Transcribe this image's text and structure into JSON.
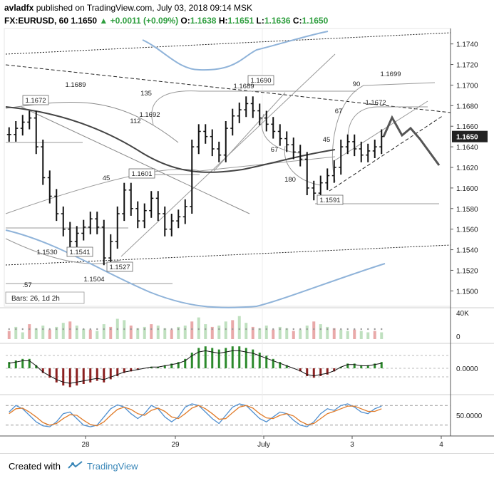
{
  "header": {
    "author": "avladfx",
    "published": "published on TradingView.com,",
    "datetime": "July 03, 2018 09:14 MSK",
    "symbol": "FX:EURUSD, 60",
    "last": "1.1650",
    "change": "+0.0011 (+0.09%)",
    "o_label": "O:",
    "o": "1.1638",
    "h_label": "H:",
    "h": "1.1651",
    "l_label": "L:",
    "l": "1.1636",
    "c_label": "C:",
    "c": "1.1650"
  },
  "footer": {
    "created_with": "Created with",
    "brand": "TradingView"
  },
  "chart_data": [
    {
      "type": "candlestick",
      "title": "FX:EURUSD, 60",
      "ylim": [
        1.1485,
        1.1755
      ],
      "y_ticks": [
        "1.1740",
        "1.1720",
        "1.1700",
        "1.1680",
        "1.1660",
        "1.1640",
        "1.1620",
        "1.1600",
        "1.1580",
        "1.1560",
        "1.1540",
        "1.1520",
        "1.1500"
      ],
      "x_ticks": [
        "28",
        "29",
        "July",
        "3",
        "4"
      ],
      "current_price": "1.1650",
      "price_labels": [
        "1.1672",
        "1.1689",
        "1.1692",
        "1.1690",
        "1.1689",
        "1.1699",
        "1.1672",
        "1.1601",
        "1.1591",
        "1.1541",
        "1.1527",
        "1.1530",
        "1.1504"
      ],
      "fib_labels": [
        "135",
        "112",
        "45",
        "90",
        "67",
        "45",
        "67",
        "180",
        ".57"
      ],
      "info_box": "Bars: 26, 1d 2h",
      "series": [
        {
          "name": "close",
          "values": [
            1.1652,
            1.1658,
            1.1664,
            1.1668,
            1.164,
            1.161,
            1.1592,
            1.1575,
            1.156,
            1.1548,
            1.1556,
            1.1562,
            1.157,
            1.1562,
            1.1532,
            1.1548,
            1.1575,
            1.1598,
            1.158,
            1.1568,
            1.1578,
            1.159,
            1.1575,
            1.156,
            1.1568,
            1.1572,
            1.1582,
            1.164,
            1.1655,
            1.165,
            1.1638,
            1.1632,
            1.1658,
            1.167,
            1.1676,
            1.1682,
            1.1675,
            1.1668,
            1.1662,
            1.1655,
            1.1648,
            1.1642,
            1.1635,
            1.1628,
            1.16,
            1.1595,
            1.1605,
            1.1612,
            1.162,
            1.164,
            1.1645,
            1.1638,
            1.1632,
            1.1636,
            1.164,
            1.165
          ]
        }
      ]
    },
    {
      "type": "bar",
      "title": "Volume",
      "y_ticks": [
        "40K",
        "0"
      ],
      "values": [
        12,
        18,
        10,
        22,
        16,
        20,
        14,
        18,
        24,
        26,
        20,
        15,
        14,
        12,
        22,
        18,
        30,
        28,
        20,
        16,
        18,
        22,
        20,
        16,
        14,
        18,
        20,
        26,
        32,
        22,
        18,
        20,
        26,
        28,
        34,
        24,
        18,
        16,
        20,
        14,
        18,
        16,
        12,
        14,
        20,
        26,
        22,
        18,
        16,
        14,
        12,
        14,
        12,
        10,
        12,
        10
      ]
    },
    {
      "type": "bar",
      "title": "Oscillator histogram",
      "y_ticks": [
        "0.0000"
      ],
      "values": [
        0.4,
        0.5,
        0.6,
        0.6,
        0.2,
        -0.3,
        -0.6,
        -0.9,
        -1.1,
        -1.2,
        -1.1,
        -1.0,
        -0.9,
        -0.8,
        -0.9,
        -0.7,
        -0.5,
        -0.3,
        -0.2,
        -0.1,
        0.0,
        0.1,
        0.1,
        0.2,
        0.3,
        0.4,
        0.6,
        1.0,
        1.3,
        1.4,
        1.3,
        1.2,
        1.3,
        1.4,
        1.4,
        1.3,
        1.2,
        1.0,
        0.8,
        0.6,
        0.4,
        0.2,
        0.0,
        -0.2,
        -0.5,
        -0.6,
        -0.5,
        -0.4,
        -0.2,
        0.1,
        0.3,
        0.3,
        0.2,
        0.2,
        0.3,
        0.4
      ]
    },
    {
      "type": "line",
      "title": "Stochastic",
      "y_ticks": [
        "50.0000"
      ],
      "series": [
        {
          "name": "%K",
          "values": [
            60,
            80,
            70,
            50,
            30,
            18,
            15,
            30,
            55,
            60,
            40,
            20,
            15,
            20,
            45,
            70,
            82,
            75,
            55,
            40,
            55,
            80,
            70,
            45,
            30,
            45,
            75,
            85,
            80,
            60,
            40,
            25,
            50,
            75,
            85,
            80,
            60,
            40,
            30,
            45,
            60,
            55,
            35,
            20,
            15,
            30,
            55,
            70,
            65,
            80,
            85,
            75,
            60,
            55,
            70,
            78
          ]
        },
        {
          "name": "%D",
          "values": [
            55,
            70,
            72,
            60,
            45,
            28,
            20,
            25,
            40,
            52,
            50,
            35,
            22,
            18,
            30,
            50,
            68,
            75,
            68,
            55,
            50,
            65,
            72,
            62,
            45,
            40,
            55,
            72,
            80,
            70,
            55,
            38,
            40,
            58,
            75,
            80,
            72,
            55,
            42,
            40,
            50,
            55,
            48,
            32,
            22,
            25,
            40,
            55,
            62,
            70,
            78,
            78,
            70,
            62,
            62,
            70
          ]
        }
      ]
    }
  ]
}
